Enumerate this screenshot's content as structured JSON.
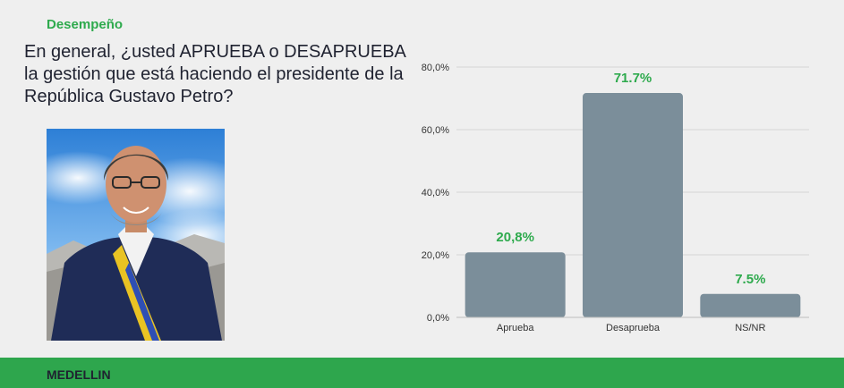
{
  "header": {
    "section": "Desempeño",
    "question": "En general, ¿usted APRUEBA o DESAPRUEBA la gestión que está haciendo el presidente de la República Gustavo Petro?"
  },
  "portrait": {
    "icon": "president-portrait"
  },
  "chart_data": {
    "type": "bar",
    "categories": [
      "Aprueba",
      "Desaprueba",
      "NS/NR"
    ],
    "values": [
      20.8,
      71.7,
      7.5
    ],
    "data_labels": [
      "20,8%",
      "71.7%",
      "7.5%"
    ],
    "ylim": [
      0,
      80
    ],
    "yticks": [
      "0,0%",
      "20,0%",
      "40,0%",
      "60,0%",
      "80,0%"
    ],
    "grid": true,
    "colors": {
      "bar": "#7b8e9a",
      "label": "#2eaa4d",
      "grid": "#d6d6d6"
    }
  },
  "footer": {
    "city": "MEDELLIN"
  }
}
